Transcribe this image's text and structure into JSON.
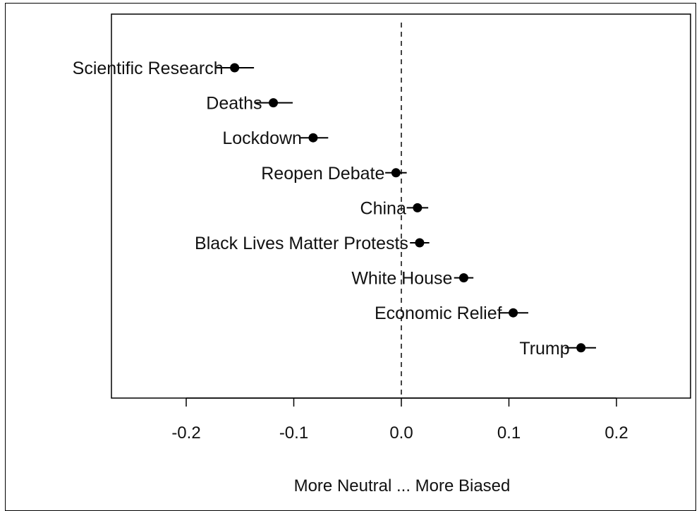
{
  "chart_data": {
    "type": "scatter",
    "subtype": "dot-and-whisker",
    "title": "",
    "xlabel": "More Neutral ... More Biased",
    "ylabel": "",
    "xlim": [
      -0.27,
      0.27
    ],
    "xticks": [
      -0.2,
      -0.1,
      0.0,
      0.1,
      0.2
    ],
    "xtick_labels": [
      "-0.2",
      "-0.1",
      "0.0",
      "0.1",
      "0.2"
    ],
    "reference_line": {
      "x": 0.0,
      "style": "dashed"
    },
    "grid": false,
    "legend": "none",
    "marker_color": "#000000",
    "points": [
      {
        "label": "Scientific Research",
        "value": -0.155,
        "ci": [
          -0.172,
          -0.137
        ]
      },
      {
        "label": "Deaths",
        "value": -0.119,
        "ci": [
          -0.136,
          -0.101
        ]
      },
      {
        "label": "Lockdown",
        "value": -0.082,
        "ci": [
          -0.095,
          -0.068
        ]
      },
      {
        "label": "Reopen Debate",
        "value": -0.005,
        "ci": [
          -0.015,
          0.005
        ]
      },
      {
        "label": "China",
        "value": 0.015,
        "ci": [
          0.005,
          0.025
        ]
      },
      {
        "label": "Black Lives Matter Protests",
        "value": 0.017,
        "ci": [
          0.008,
          0.026
        ]
      },
      {
        "label": "White House",
        "value": 0.058,
        "ci": [
          0.049,
          0.067
        ]
      },
      {
        "label": "Economic Relief",
        "value": 0.104,
        "ci": [
          0.091,
          0.118
        ]
      },
      {
        "label": "Trump",
        "value": 0.167,
        "ci": [
          0.152,
          0.181
        ]
      }
    ]
  }
}
